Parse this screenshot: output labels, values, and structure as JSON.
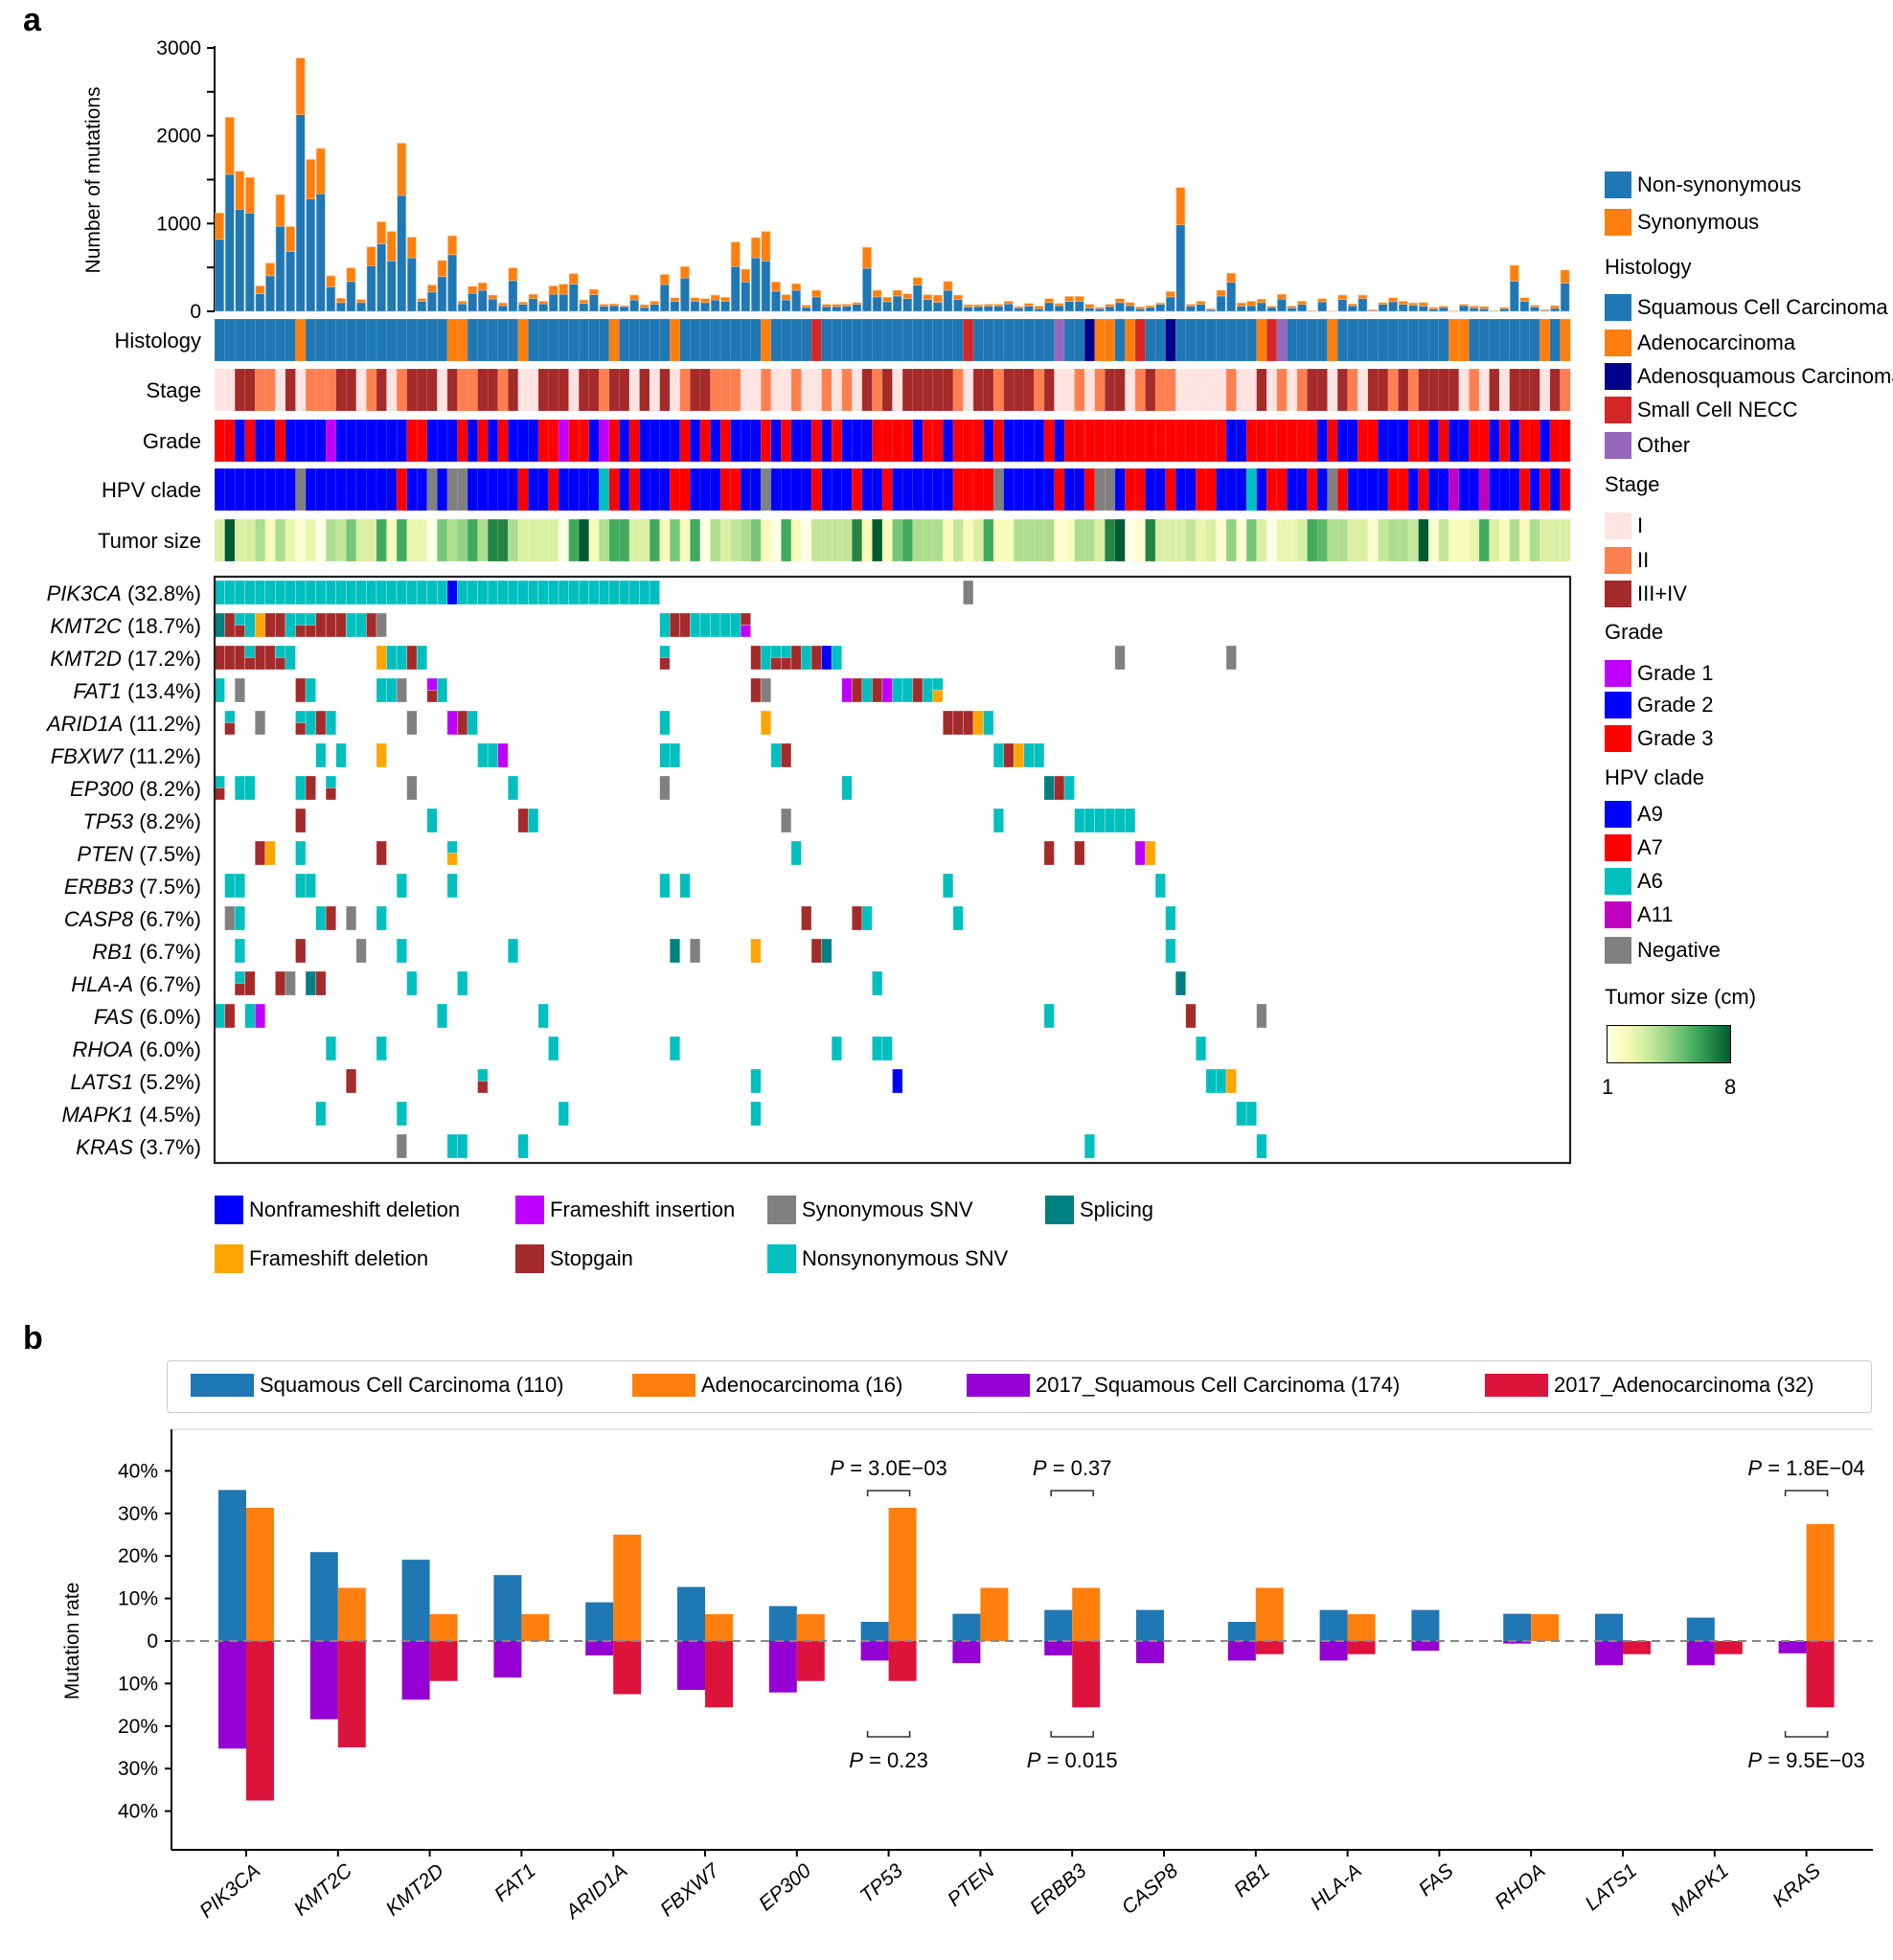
{
  "panel_a": {
    "letter": "a",
    "mutation_burden": {
      "ylabel": "Number of mutations",
      "ymax": 3000,
      "tick_labels": [
        "0",
        "1000",
        "2000",
        "3000"
      ],
      "non_synonymous": [
        820,
        1560,
        1160,
        1120,
        200,
        405,
        970,
        680,
        2240,
        1280,
        1340,
        280,
        100,
        340,
        100,
        520,
        770,
        575,
        1320,
        610,
        115,
        220,
        395,
        645,
        85,
        205,
        240,
        140,
        65,
        350,
        80,
        145,
        85,
        195,
        195,
        310,
        90,
        190,
        60,
        65,
        55,
        130,
        45,
        80,
        305,
        115,
        380,
        115,
        100,
        130,
        115,
        510,
        335,
        610,
        575,
        230,
        130,
        240,
        45,
        165,
        55,
        55,
        60,
        80,
        490,
        165,
        110,
        175,
        145,
        300,
        135,
        105,
        240,
        135,
        50,
        55,
        60,
        60,
        85,
        40,
        60,
        30,
        100,
        65,
        115,
        115,
        40,
        30,
        55,
        100,
        65,
        30,
        45,
        80,
        165,
        985,
        60,
        80,
        20,
        175,
        330,
        60,
        65,
        100,
        45,
        140,
        40,
        80,
        5,
        110,
        3,
        135,
        65,
        145,
        10,
        80,
        110,
        80,
        70,
        60,
        25,
        45,
        5,
        65,
        40,
        30,
        5,
        30,
        345,
        115,
        50,
        10,
        35,
        320
      ],
      "synonymous": [
        300,
        650,
        435,
        405,
        90,
        145,
        360,
        285,
        645,
        450,
        515,
        125,
        50,
        155,
        35,
        215,
        250,
        335,
        595,
        235,
        30,
        80,
        185,
        215,
        30,
        80,
        85,
        45,
        30,
        145,
        25,
        50,
        30,
        95,
        115,
        120,
        40,
        60,
        20,
        20,
        10,
        55,
        30,
        35,
        115,
        40,
        130,
        40,
        45,
        55,
        45,
        280,
        145,
        230,
        335,
        105,
        60,
        75,
        25,
        75,
        25,
        25,
        20,
        20,
        240,
        75,
        50,
        65,
        55,
        85,
        55,
        80,
        100,
        50,
        25,
        20,
        20,
        20,
        30,
        15,
        30,
        30,
        45,
        25,
        55,
        55,
        40,
        15,
        25,
        45,
        35,
        20,
        20,
        15,
        60,
        425,
        20,
        35,
        10,
        65,
        105,
        35,
        50,
        40,
        15,
        55,
        20,
        35,
        5,
        35,
        2,
        50,
        20,
        40,
        10,
        20,
        45,
        35,
        25,
        40,
        20,
        15,
        5,
        15,
        20,
        25,
        5,
        15,
        180,
        40,
        20,
        10,
        30,
        150
      ]
    },
    "tracks": [
      {
        "label": "Histology",
        "key": "histology",
        "runs": "S*8 A S*14 A*2 S*5 A S*8 A S*5 A S*8 A S*4 N S*14 N S*8 O S*2 D A*2 S A N S*2 D S*8 A N O S*4 A S*11 A*2 S*7 A S A"
      },
      {
        "label": "Stage",
        "key": "stage",
        "runs": "1*2 3*2 2*2 1 3 1 2*3 3*2 1 2 3 1 2 3*3 1 3 2*2 3*2 2 3 1*2 3*3 1 3*2 2 3*2 1 3 1 3 1 2 3*2 2*3 1*2 2 1*2 2 1*2 2 1 2 1 3 2 3 1 3*5 2 1 3*2 2 3*3 2 3 1*2 2 1 2 3*2 1 2 3 2*2 1*5 2 1*2 3 1 2 1 2 3*2 1 3 2 1 3*2 2 3 2 3*4 1 2 1 3 1 3*3 1 3 2"
      },
      {
        "label": "Grade",
        "key": "grade",
        "runs": "3*2 2 3 2*2 3 2*4 1 2*7 3*2 2*3 3 2 3 2 3 2*3 3*2 1 3*2 2 1 3 2 3 2*4 3 2 3 2 3 2*3 3 2 3 2*2 3 2 3 2*3 3*4 2 3*2 2 3*3 2 3 2*4 3 2 3*16 2*2 3*7 2 3 2*2 3*2 2*3 3*2 2 3 2*2 3*2 2 3 2 3*2 2 3*2"
      },
      {
        "label": "HPV clade",
        "key": "hpv",
        "runs": "9*8 N 9*9 7 9*2 N 9 N*2 9*5 7 9*2 7 9*4 6 7 9 7 9*3 7*2 9*3 7*2 9*2 N 9*4 7 9*3 7 9*2 7 9*6 7*4 N 9*5 7 9*2 7 N*2 9 7*2 9*2 7 9*2 7*2 9*3 6 9 7*2 9*2 7 9 N 7 9*4 7*2 9 7 9*2 11 9*2 11 9*3 7 9 7 9 7"
      },
      {
        "label": "Tumor size",
        "key": "tumor_size",
        "values": [
          3,
          8,
          3,
          3,
          4,
          2,
          4,
          2.5,
          1.5,
          2.5,
          1,
          4,
          3.5,
          5,
          3,
          3,
          6,
          2,
          6,
          2.5,
          2.5,
          1,
          5,
          4,
          4.5,
          6,
          4,
          7,
          7,
          4,
          3,
          3,
          3,
          3,
          1,
          6,
          8,
          2,
          4,
          6,
          6,
          3,
          3,
          6,
          2,
          5,
          2,
          6,
          1,
          4,
          3,
          3.5,
          4,
          5,
          2,
          1,
          6,
          2,
          1,
          3.5,
          3.5,
          3.5,
          3.5,
          7,
          2,
          8,
          2,
          5,
          6,
          4,
          4,
          4,
          2,
          3.5,
          2,
          3,
          6,
          2,
          2,
          4,
          4,
          4,
          4,
          1.5,
          2,
          4,
          4,
          3,
          7,
          8,
          1,
          1.5,
          7,
          3,
          3,
          3,
          3.5,
          2.5,
          3,
          1.5,
          4.5,
          1.5,
          5,
          3,
          1,
          2.5,
          2.5,
          3,
          6,
          5.5,
          4,
          4,
          3,
          3,
          1.5,
          3.5,
          4,
          4,
          3.5,
          8,
          1.5,
          3.5,
          2,
          2,
          2.5,
          6,
          3,
          2,
          4,
          2,
          4,
          3,
          3,
          3
        ]
      }
    ],
    "oncoprint": [
      {
        "gene": "PIK3CA",
        "pct": "(32.8%)",
        "cells": "0-22:N,23:F,24-43:N,74:Y"
      },
      {
        "gene": "KMT2C",
        "pct": "(18.7%)",
        "cells": "0:P,1:S,2:N/S,3:N,4:D,5-6:S,7:N,8:N/S,9:N/S,10-12:S,13-14:N,15:S,16:Y,44:N,45-46:S,47-51:N,52:S/I"
      },
      {
        "gene": "KMT2D",
        "pct": "(17.2%)",
        "cells": "0-2:S,3:N/S,4-5:S,6:N/S,7:N,16:D,17-18:N,19:S,20:N,44:N/S,53:S,54:N,55:N/S,56:N/S,57:S,58:N,59:S,60:F,61:N,89:Y,100:Y"
      },
      {
        "gene": "FAT1",
        "pct": "(13.4%)",
        "cells": "0:N,2:Y,8:S,9:N,16-17:N,18:Y,21:I/S,22:N,53:S,54:Y,62:I,63:S,64:N,65:S,66:I,67-68:N,69:S,70:N,71:N/D"
      },
      {
        "gene": "ARID1A",
        "pct": "(11.2%)",
        "cells": "1:N/S,4:Y,8:N/S,9:N,10:S,11:N,19:Y,23:I,24:S,25:N,44:N,54:D,72-74:S,75:D,76:N"
      },
      {
        "gene": "FBXW7",
        "pct": "(11.2%)",
        "cells": "10:N,12:N,16:D,26-27:N,28:I,44-45:N,55:N,56:S,77:N,78:S,79:D,80-81:N"
      },
      {
        "gene": "EP300",
        "pct": "(8.2%)",
        "cells": "0:N/S,2-3:N,8:N,9:S,11:N/S,19:Y,29:N,44:Y,62:N,82:P,83:S,84:N"
      },
      {
        "gene": "TP53",
        "pct": "(8.2%)",
        "cells": "8:S,21:N,30:S,31:N,56:Y,77:N,85-90:N"
      },
      {
        "gene": "PTEN",
        "pct": "(7.5%)",
        "cells": "4:S,5:D,8:N,16:S,23:N/D,57:N,82:S,85:S,91:I,92:D"
      },
      {
        "gene": "ERBB3",
        "pct": "(7.5%)",
        "cells": "1-2:N,8-9:N,18:N,23:N,44:N,46:N,72:N,93:N"
      },
      {
        "gene": "CASP8",
        "pct": "(6.7%)",
        "cells": "1:Y,2:N,10:N,11:S,13:Y,16:N,58:S,63:S,64:N,73:N,94:N"
      },
      {
        "gene": "RB1",
        "pct": "(6.7%)",
        "cells": "2:N,8:S,14:Y,18:N,29:N,45:P,47:Y,53:D,59:S,60:P,94:N"
      },
      {
        "gene": "HLA-A",
        "pct": "(6.7%)",
        "cells": "2:N/S,3:S,6:S,7:Y,9:P,10:S,19:N,24:N,65:N,95:P"
      },
      {
        "gene": "FAS",
        "pct": "(6.0%)",
        "cells": "0:N,1:S,3:N,4:I,22:N,32:N,82:N,96:S,103:Y"
      },
      {
        "gene": "RHOA",
        "pct": "(6.0%)",
        "cells": "11:N,16:N,33:N,45:N,61:N,65-66:N,97:N"
      },
      {
        "gene": "LATS1",
        "pct": "(5.2%)",
        "cells": "13:S,26:N/S,53:N,67:F,98-99:N,100:D"
      },
      {
        "gene": "MAPK1",
        "pct": "(4.5%)",
        "cells": "10:N,18:N,34:N,53:N,101-102:N"
      },
      {
        "gene": "KRAS",
        "pct": "(3.7%)",
        "cells": "18:Y,23-24:N,30:N,86:N,103:N"
      }
    ],
    "mutation_legend": [
      {
        "code": "F",
        "label": "Nonframeshift deletion",
        "color": "#0000ff"
      },
      {
        "code": "I",
        "label": "Frameshift insertion",
        "color": "#bf00ff"
      },
      {
        "code": "Y",
        "label": "Synonymous SNV",
        "color": "#808080"
      },
      {
        "code": "P",
        "label": "Splicing",
        "color": "#008080"
      },
      {
        "code": "D",
        "label": "Frameshift deletion",
        "color": "#ffa500"
      },
      {
        "code": "S",
        "label": "Stopgain",
        "color": "#a52a2a"
      },
      {
        "code": "N",
        "label": "Nonsynonymous SNV",
        "color": "#00bfbf"
      }
    ],
    "right_legend": {
      "burden": [
        {
          "label": "Non-synonymous",
          "color": "#1f77b4"
        },
        {
          "label": "Synonymous",
          "color": "#ff7f0e"
        }
      ],
      "histology": {
        "title": "Histology",
        "items": [
          {
            "code": "S",
            "label": "Squamous Cell Carcinoma",
            "color": "#1f77b4"
          },
          {
            "code": "A",
            "label": "Adenocarcinoma",
            "color": "#ff7f0e"
          },
          {
            "code": "D",
            "label": "Adenosquamous Carcinoma",
            "color": "#00008b"
          },
          {
            "code": "N",
            "label": "Small Cell NECC",
            "color": "#d62728"
          },
          {
            "code": "O",
            "label": "Other",
            "color": "#9467bd"
          }
        ]
      },
      "stage": {
        "title": "Stage",
        "items": [
          {
            "code": "1",
            "label": "I",
            "color": "#ffe4e1"
          },
          {
            "code": "2",
            "label": "II",
            "color": "#ff7f50"
          },
          {
            "code": "3",
            "label": "III+IV",
            "color": "#a52a2a"
          }
        ]
      },
      "grade": {
        "title": "Grade",
        "items": [
          {
            "code": "1",
            "label": "Grade 1",
            "color": "#bf00ff"
          },
          {
            "code": "2",
            "label": "Grade 2",
            "color": "#0000ff"
          },
          {
            "code": "3",
            "label": "Grade 3",
            "color": "#ff0000"
          }
        ]
      },
      "hpv": {
        "title": "HPV clade",
        "items": [
          {
            "code": "9",
            "label": "A9",
            "color": "#0000ff"
          },
          {
            "code": "7",
            "label": "A7",
            "color": "#ff0000"
          },
          {
            "code": "6",
            "label": "A6",
            "color": "#00bfbf"
          },
          {
            "code": "11",
            "label": "A11",
            "color": "#bf00bf"
          },
          {
            "code": "N",
            "label": "Negative",
            "color": "#808080"
          }
        ]
      },
      "tumor_size": {
        "title": "Tumor size (cm)",
        "min": 1,
        "max": 8,
        "min_label": "1",
        "max_label": "8",
        "colors": [
          "#ffffe5",
          "#f7fcb9",
          "#d9f0a3",
          "#addd8e",
          "#78c679",
          "#41ab5d",
          "#238443",
          "#005a32"
        ]
      }
    }
  },
  "chart_data": {
    "type": "bar",
    "panel_letter": "b",
    "title": "",
    "xlabel": "",
    "ylabel": "Mutation rate",
    "ylim": [
      -40,
      40
    ],
    "y_tick_labels": [
      "40%",
      "30%",
      "20%",
      "10%",
      "0",
      "10%",
      "20%",
      "30%",
      "40%"
    ],
    "y_tick_values": [
      40,
      30,
      20,
      10,
      0,
      -10,
      -20,
      -30,
      -40
    ],
    "legend_position": "top",
    "categories": [
      "PIK3CA",
      "KMT2C",
      "KMT2D",
      "FAT1",
      "ARID1A",
      "FBXW7",
      "EP300",
      "TP53",
      "PTEN",
      "ERBB3",
      "CASP8",
      "RB1",
      "HLA-A",
      "FAS",
      "RHOA",
      "LATS1",
      "MAPK1",
      "KRAS"
    ],
    "series": [
      {
        "name": "Squamous Cell Carcinoma (110)",
        "color": "#1f77b4",
        "direction": "up",
        "values": [
          35.5,
          20.9,
          19.1,
          15.5,
          9.1,
          12.7,
          8.2,
          4.5,
          6.4,
          7.3,
          7.3,
          4.5,
          7.3,
          7.3,
          6.4,
          6.4,
          5.5,
          0
        ]
      },
      {
        "name": "Adenocarcinoma (16)",
        "color": "#ff7f0e",
        "direction": "up",
        "values": [
          31.3,
          12.5,
          6.3,
          6.3,
          25.0,
          6.3,
          6.3,
          31.3,
          12.5,
          12.5,
          0,
          12.5,
          6.3,
          0,
          6.3,
          0,
          0,
          27.5
        ]
      },
      {
        "name": "2017_Squamous Cell Carcinoma (174)",
        "color": "#9400d3",
        "direction": "down",
        "values": [
          25.3,
          18.4,
          13.8,
          8.6,
          3.4,
          11.5,
          12.1,
          4.6,
          5.2,
          3.4,
          5.2,
          4.6,
          4.6,
          2.3,
          0.6,
          5.7,
          5.7,
          2.9
        ]
      },
      {
        "name": "2017_Adenocarcinoma (32)",
        "color": "#dc143c",
        "direction": "down",
        "values": [
          37.5,
          25.0,
          9.4,
          0,
          12.5,
          15.6,
          9.4,
          9.4,
          0,
          15.6,
          0,
          3.1,
          3.1,
          0,
          0,
          3.1,
          3.1,
          15.6
        ]
      }
    ],
    "annotations": [
      {
        "gene": "TP53",
        "position": "top",
        "label": "P",
        "value": "3.0E−03"
      },
      {
        "gene": "TP53",
        "position": "bottom",
        "label": "P",
        "value": "0.23"
      },
      {
        "gene": "ERBB3",
        "position": "top",
        "label": "P",
        "value": "0.37"
      },
      {
        "gene": "ERBB3",
        "position": "bottom",
        "label": "P",
        "value": "0.015"
      },
      {
        "gene": "KRAS",
        "position": "top",
        "label": "P",
        "value": "1.8E−04"
      },
      {
        "gene": "KRAS",
        "position": "bottom",
        "label": "P",
        "value": "9.5E−03"
      }
    ]
  }
}
